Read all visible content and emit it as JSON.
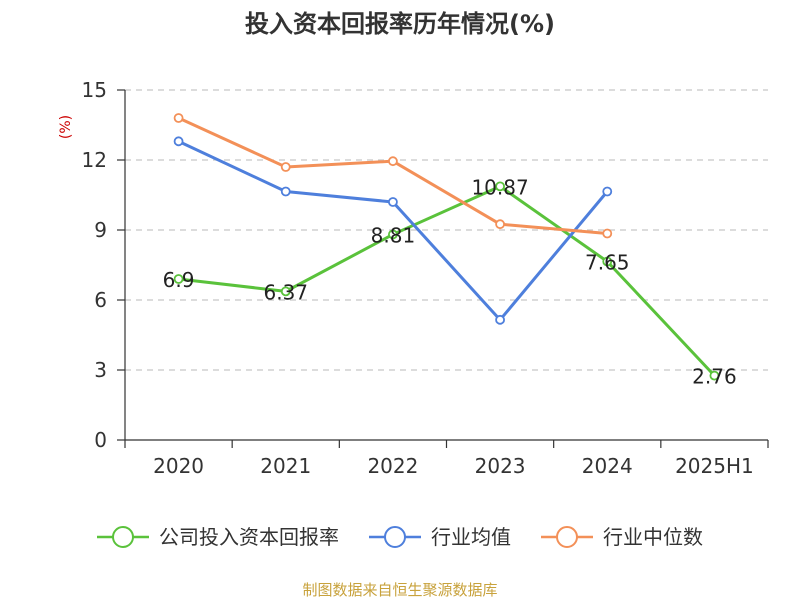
{
  "chart_data": {
    "type": "line",
    "title": "投入资本回报率历年情况(%)",
    "ylabel": "(%)",
    "xlabel": "",
    "categories": [
      "2020",
      "2021",
      "2022",
      "2023",
      "2024",
      "2025H1"
    ],
    "ylim": [
      0,
      15
    ],
    "yticks": [
      0,
      3,
      6,
      9,
      12,
      15
    ],
    "grid": true,
    "legend_position": "bottom",
    "series": [
      {
        "name": "公司投入资本回报率",
        "color": "#5ac23b",
        "values": [
          6.9,
          6.37,
          8.81,
          10.87,
          7.65,
          2.76
        ],
        "labels": [
          "6.9",
          "6.37",
          "8.81",
          "10.87",
          "7.65",
          "2.76"
        ]
      },
      {
        "name": "行业均值",
        "color": "#4e7fdc",
        "values": [
          12.8,
          10.65,
          10.2,
          5.15,
          10.65,
          null
        ]
      },
      {
        "name": "行业中位数",
        "color": "#f39058",
        "values": [
          13.8,
          11.7,
          11.95,
          9.25,
          8.85,
          null
        ]
      }
    ]
  },
  "source": "制图数据来自恒生聚源数据库"
}
